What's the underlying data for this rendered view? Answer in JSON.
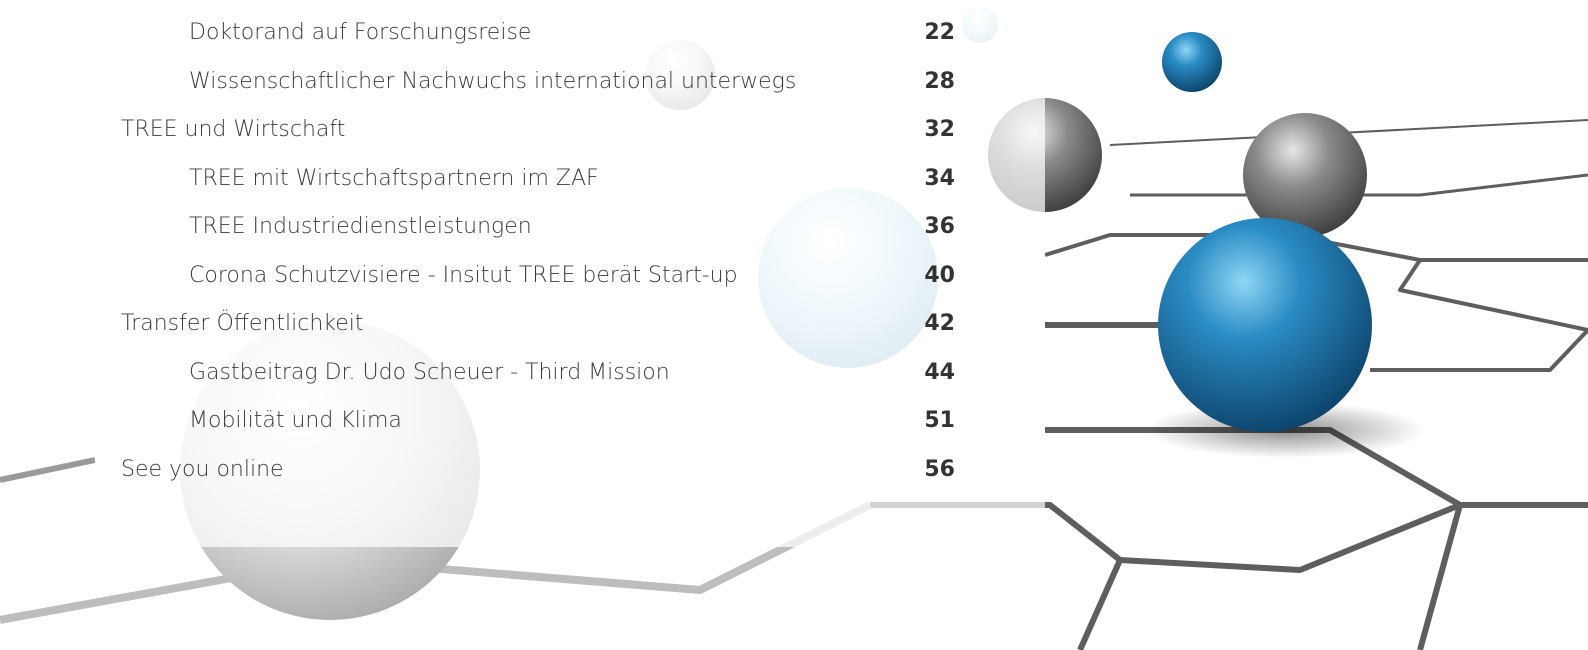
{
  "toc": {
    "continued_items": [
      {
        "title": "Doktorand auf Forschungsreise",
        "page": "22"
      },
      {
        "title": "Wissenschaftlicher Nachwuchs international unterwegs",
        "page": "28"
      }
    ],
    "sections": [
      {
        "title": "TREE und Wirtschaft",
        "page": "32",
        "items": [
          {
            "title": "TREE mit Wirtschaftspartnern im ZAF",
            "page": "34"
          },
          {
            "title": "TREE Industriedienstleistungen",
            "page": "36"
          },
          {
            "title": "Corona Schutzvisiere - Insitut TREE berät Start-up",
            "page": "40"
          }
        ]
      },
      {
        "title": "Transfer Öffentlichkeit",
        "page": "42",
        "items": [
          {
            "title": "Gastbeitrag Dr. Udo Scheuer - Third Mission",
            "page": "44"
          },
          {
            "title": "Mobilität und Klima",
            "page": "51"
          }
        ]
      },
      {
        "title": "See you online",
        "page": "56",
        "items": []
      }
    ]
  }
}
